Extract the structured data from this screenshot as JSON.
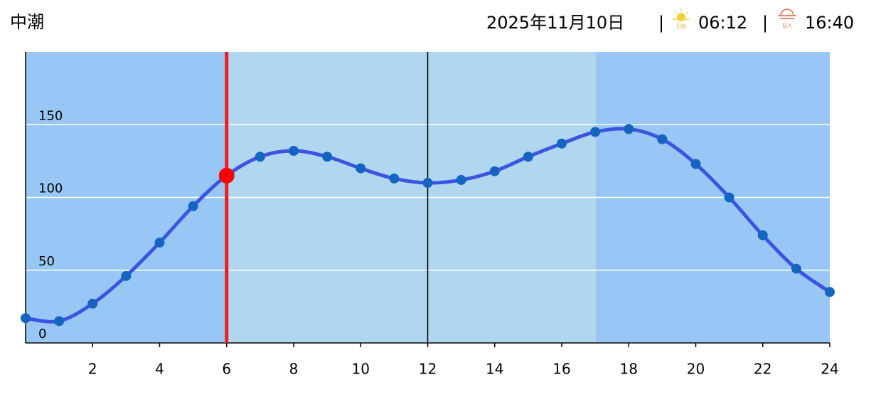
{
  "header": {
    "tide_name": "中潮",
    "date": "2025年11月10日",
    "separator": "|",
    "sunrise_icon_label": "日出",
    "sunrise": "06:12",
    "sunset_icon_label": "日入",
    "sunset": "16:40"
  },
  "chart_data": {
    "type": "line",
    "x": [
      0,
      1,
      2,
      3,
      4,
      5,
      6,
      7,
      8,
      9,
      10,
      11,
      12,
      13,
      14,
      15,
      16,
      17,
      18,
      19,
      20,
      21,
      22,
      23,
      24
    ],
    "series": [
      {
        "color": "#3b55e0",
        "values": [
          17,
          15,
          27,
          46,
          69,
          94,
          115,
          128,
          132,
          128,
          120,
          113,
          110,
          112,
          118,
          128,
          137,
          145,
          147,
          140,
          123,
          100,
          74,
          51,
          35
        ]
      }
    ],
    "highlight_x": 6,
    "xlim": [
      0,
      24
    ],
    "xticks": [
      2,
      4,
      6,
      8,
      10,
      12,
      14,
      16,
      18,
      20,
      22,
      24
    ],
    "ylim": [
      0,
      200
    ],
    "yticks": [
      0,
      50,
      100,
      150
    ],
    "grid": true
  }
}
